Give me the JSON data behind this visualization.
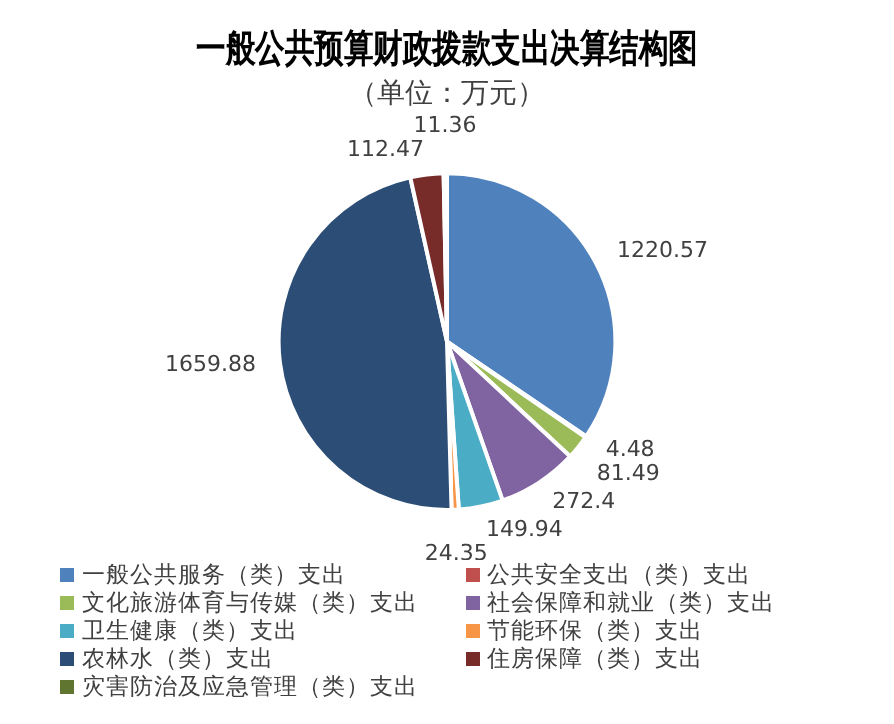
{
  "chart_data": {
    "type": "pie",
    "title": "一般公共预算财政拨款支出决算结构图",
    "subtitle": "（单位：万元）",
    "categories": [
      "一般公共服务（类）支出",
      "公共安全支出（类）支出",
      "文化旅游体育与传媒（类）支出",
      "社会保障和就业（类）支出",
      "卫生健康（类）支出",
      "节能环保（类）支出",
      "农林水（类）支出",
      "住房保障（类）支出",
      "灾害防治及应急管理（类）支出"
    ],
    "values": [
      1220.57,
      4.48,
      81.49,
      272.4,
      149.94,
      24.35,
      1659.88,
      112.47,
      11.36
    ],
    "colors": [
      "#4f81bd",
      "#c0504d",
      "#9bbb59",
      "#8064a2",
      "#4bacc6",
      "#f79646",
      "#2c4d75",
      "#772c2a",
      "#5f7530"
    ],
    "data_labels": true,
    "legend": "bottom"
  }
}
